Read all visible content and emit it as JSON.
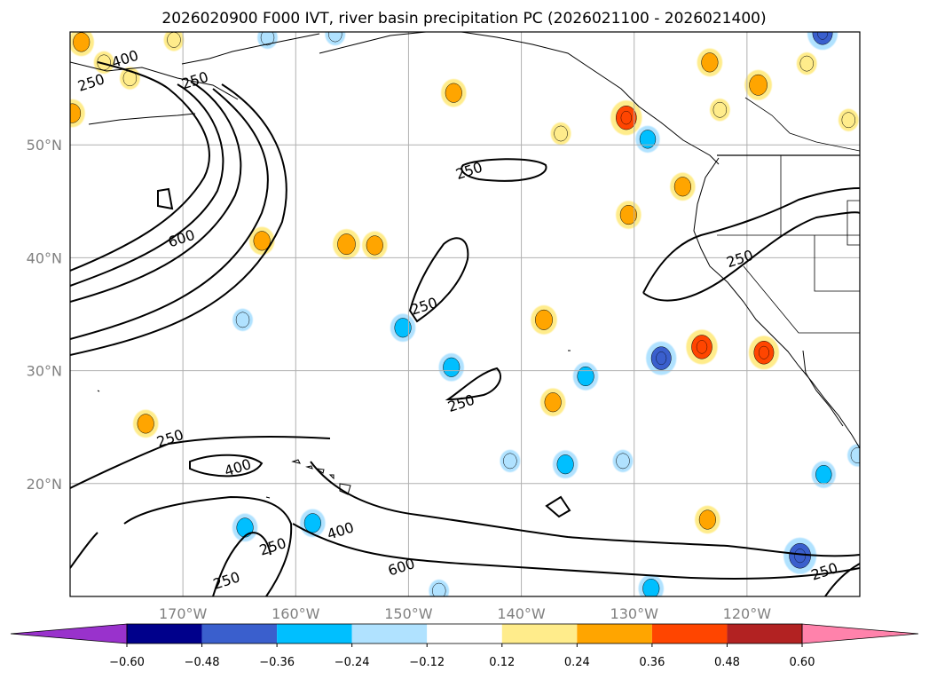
{
  "chart_data": {
    "type": "contour-map",
    "title": "2026020900 F000 IVT, river basin precipitation PC (2026021100 - 2026021400)",
    "lon_range": [
      -180,
      -110
    ],
    "lat_range": [
      10,
      60
    ],
    "x_ticks": [
      {
        "value": -170,
        "label": "170°W"
      },
      {
        "value": -160,
        "label": "160°W"
      },
      {
        "value": -150,
        "label": "150°W"
      },
      {
        "value": -140,
        "label": "140°W"
      },
      {
        "value": -130,
        "label": "130°W"
      },
      {
        "value": -120,
        "label": "120°W"
      }
    ],
    "y_ticks": [
      {
        "value": 20,
        "label": "20°N"
      },
      {
        "value": 30,
        "label": "30°N"
      },
      {
        "value": 40,
        "label": "40°N"
      },
      {
        "value": 50,
        "label": "50°N"
      }
    ],
    "grid": true,
    "ivt_contour_levels": [
      250,
      400,
      600
    ],
    "contour_labels": [
      {
        "text": "400",
        "lon": -175,
        "lat": 57.2
      },
      {
        "text": "250",
        "lon": -178,
        "lat": 55.1
      },
      {
        "text": "250",
        "lon": -168.8,
        "lat": 55.3
      },
      {
        "text": "600",
        "lon": -170,
        "lat": 41.3
      },
      {
        "text": "250",
        "lon": -144.5,
        "lat": 47.3
      },
      {
        "text": "250",
        "lon": -148.5,
        "lat": 35.3
      },
      {
        "text": "250",
        "lon": -120.5,
        "lat": 39.5
      },
      {
        "text": "250",
        "lon": -145.2,
        "lat": 26.7
      },
      {
        "text": "250",
        "lon": -171,
        "lat": 23.6
      },
      {
        "text": "400",
        "lon": -165,
        "lat": 21.0
      },
      {
        "text": "250",
        "lon": -161.9,
        "lat": 14.0
      },
      {
        "text": "400",
        "lon": -155.9,
        "lat": 15.4
      },
      {
        "text": "600",
        "lon": -150.5,
        "lat": 12.2
      },
      {
        "text": "250",
        "lon": -166,
        "lat": 11.0
      },
      {
        "text": "250",
        "lon": -113,
        "lat": 11.8
      }
    ],
    "colorbar": {
      "boundaries": [
        -0.6,
        -0.48,
        -0.36,
        -0.24,
        -0.12,
        0.12,
        0.24,
        0.36,
        0.48,
        0.6
      ],
      "tick_labels": [
        "−0.60",
        "−0.48",
        "−0.36",
        "−0.24",
        "−0.12",
        "0.12",
        "0.24",
        "0.36",
        "0.48",
        "0.60"
      ],
      "under_color": "#9932cc",
      "over_color": "#ff82ab",
      "colors": [
        "#00008b",
        "#3a5fcd",
        "#00bfff",
        "#b0e2ff",
        "#ffffff",
        "#ffec8b",
        "#ffa500",
        "#ff4500",
        "#b22222"
      ]
    },
    "precip_pc_blobs": [
      {
        "lon": -179,
        "lat": 59.1,
        "value": 0.3
      },
      {
        "lon": -170.8,
        "lat": 59.3,
        "value": 0.2
      },
      {
        "lon": -162.5,
        "lat": 59.5,
        "value": -0.2
      },
      {
        "lon": -156.5,
        "lat": 59.8,
        "value": -0.2
      },
      {
        "lon": -177,
        "lat": 57.3,
        "value": 0.2
      },
      {
        "lon": -174.7,
        "lat": 55.9,
        "value": 0.2
      },
      {
        "lon": -179.8,
        "lat": 52.8,
        "value": 0.3
      },
      {
        "lon": -146,
        "lat": 54.6,
        "value": 0.3
      },
      {
        "lon": -130.7,
        "lat": 52.4,
        "value": 0.42
      },
      {
        "lon": -128.8,
        "lat": 50.5,
        "value": -0.28
      },
      {
        "lon": -123.3,
        "lat": 57.3,
        "value": 0.3
      },
      {
        "lon": -119,
        "lat": 55.3,
        "value": 0.34
      },
      {
        "lon": -113.3,
        "lat": 59.9,
        "value": -0.4
      },
      {
        "lon": -114.7,
        "lat": 57.2,
        "value": 0.2
      },
      {
        "lon": -122.4,
        "lat": 53.1,
        "value": 0.2
      },
      {
        "lon": -111,
        "lat": 52.2,
        "value": 0.2
      },
      {
        "lon": -136.5,
        "lat": 51.0,
        "value": 0.2
      },
      {
        "lon": -125.7,
        "lat": 46.3,
        "value": 0.3
      },
      {
        "lon": -130.5,
        "lat": 43.8,
        "value": 0.3
      },
      {
        "lon": -163,
        "lat": 41.5,
        "value": 0.3
      },
      {
        "lon": -155.5,
        "lat": 41.2,
        "value": 0.34
      },
      {
        "lon": -153,
        "lat": 41.1,
        "value": 0.3
      },
      {
        "lon": -138,
        "lat": 34.5,
        "value": 0.32
      },
      {
        "lon": -124,
        "lat": 32.1,
        "value": 0.42
      },
      {
        "lon": -118.5,
        "lat": 31.6,
        "value": 0.4
      },
      {
        "lon": -150.5,
        "lat": 33.8,
        "value": -0.3
      },
      {
        "lon": -127.6,
        "lat": 31.1,
        "value": -0.4
      },
      {
        "lon": -134.3,
        "lat": 29.5,
        "value": -0.3
      },
      {
        "lon": -146.2,
        "lat": 30.3,
        "value": -0.3
      },
      {
        "lon": -164.7,
        "lat": 34.5,
        "value": -0.2
      },
      {
        "lon": -137.2,
        "lat": 27.2,
        "value": 0.3
      },
      {
        "lon": -173.3,
        "lat": 25.3,
        "value": 0.3
      },
      {
        "lon": -136.1,
        "lat": 21.7,
        "value": -0.3
      },
      {
        "lon": -131,
        "lat": 22.0,
        "value": -0.2
      },
      {
        "lon": -141,
        "lat": 22.0,
        "value": -0.2
      },
      {
        "lon": -158.5,
        "lat": 16.5,
        "value": -0.3
      },
      {
        "lon": -164.5,
        "lat": 16.1,
        "value": -0.3
      },
      {
        "lon": -115.3,
        "lat": 13.6,
        "value": -0.45
      },
      {
        "lon": -128.5,
        "lat": 10.7,
        "value": -0.3
      },
      {
        "lon": -147.3,
        "lat": 10.5,
        "value": -0.2
      },
      {
        "lon": -113.2,
        "lat": 20.8,
        "value": -0.28
      },
      {
        "lon": -123.5,
        "lat": 16.8,
        "value": 0.3
      },
      {
        "lon": -110.2,
        "lat": 22.5,
        "value": -0.2
      }
    ]
  }
}
